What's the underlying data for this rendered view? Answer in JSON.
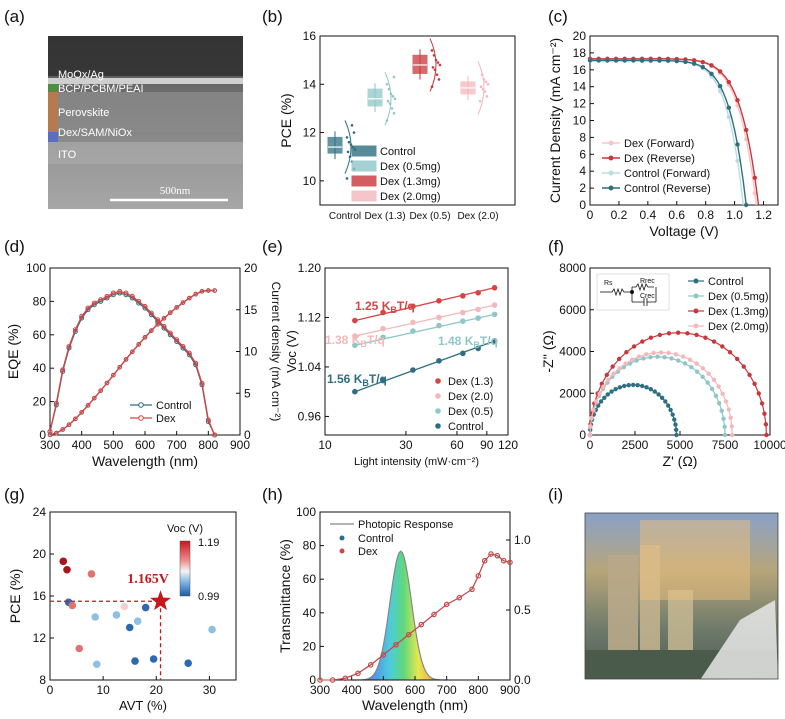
{
  "panel_labels": [
    "(a)",
    "(b)",
    "(c)",
    "(d)",
    "(e)",
    "(f)",
    "(g)",
    "(h)",
    "(i)"
  ],
  "colors": {
    "control": "#2e6f82",
    "dex": "#d64545",
    "dex13": "#c9373b",
    "dex05": "#8fc6c8",
    "dex20": "#f3b8bc",
    "control_light": "#b9dde0",
    "dex_light_pink": "#f6c7ca",
    "star": "#c8161d",
    "sem_bg": "#4d4d4d"
  },
  "panel_a": {
    "layers": [
      "MoOx/Ag",
      "BCP/PCBM/PEAI",
      "Perovskite",
      "Dex/SAM/NiOx",
      "ITO"
    ],
    "scalebar": "500nm"
  },
  "chart_data": [
    {
      "id": "b",
      "type": "scatter",
      "ylabel": "PCE (%)",
      "ylim": [
        9,
        16
      ],
      "yticks": [
        10,
        12,
        14,
        16
      ],
      "categories": [
        "Control",
        "Dex (1.3)",
        "Dex (0.5)",
        "Dex (2.0)"
      ],
      "box_means": [
        11.4,
        13.4,
        14.8,
        13.85
      ],
      "box_lo": [
        11.15,
        13.1,
        14.45,
        13.6
      ],
      "box_hi": [
        11.8,
        13.8,
        15.2,
        14.1
      ],
      "points": [
        [
          10.1,
          10.5,
          10.8,
          11.0,
          11.2,
          11.3,
          11.4,
          11.5,
          11.6,
          11.8,
          12.0,
          12.3
        ],
        [
          12.5,
          12.8,
          13.0,
          13.2,
          13.3,
          13.4,
          13.5,
          13.6,
          13.8,
          14.0,
          14.3
        ],
        [
          13.9,
          14.2,
          14.4,
          14.6,
          14.7,
          14.8,
          14.9,
          15.0,
          15.2,
          15.4
        ],
        [
          13.3,
          13.5,
          13.7,
          13.8,
          13.9,
          14.0,
          14.1,
          14.2,
          14.4
        ]
      ],
      "legend": [
        "Control",
        "Dex (0.5mg)",
        "Dex (1.3mg)",
        "Dex (2.0mg)"
      ]
    },
    {
      "id": "c",
      "type": "line",
      "xlabel": "Voltage (V)",
      "ylabel": "Current Density (mA cm⁻²)",
      "xlim": [
        0,
        1.3
      ],
      "ylim": [
        0,
        20
      ],
      "xticks": [
        "0",
        "0.2",
        "0.4",
        "0.6",
        "0.8",
        "1.0",
        "1.2"
      ],
      "yticks": [
        0,
        2,
        4,
        6,
        8,
        10,
        12,
        14,
        16,
        18,
        20
      ],
      "series": [
        {
          "name": "Dex (Forward)",
          "jsc": 17.3,
          "voc": 1.15
        },
        {
          "name": "Dex (Reverse)",
          "jsc": 17.3,
          "voc": 1.165
        },
        {
          "name": "Control (Forward)",
          "jsc": 17.1,
          "voc": 1.06
        },
        {
          "name": "Control (Reverse)",
          "jsc": 17.1,
          "voc": 1.08
        }
      ]
    },
    {
      "id": "d",
      "type": "line",
      "xlabel": "Wavelength (nm)",
      "ylabel": "EQE (%)",
      "ylabel_right": "Current density (mA cm⁻²)",
      "xlim": [
        300,
        900
      ],
      "ylim": [
        0,
        100
      ],
      "ylim_right": [
        0,
        20
      ],
      "xticks": [
        300,
        400,
        500,
        600,
        700,
        800,
        900
      ],
      "yticks": [
        0,
        20,
        40,
        60,
        80,
        100
      ],
      "yticks_right": [
        0,
        5,
        10,
        15,
        20
      ],
      "x": [
        300,
        320,
        340,
        360,
        380,
        400,
        420,
        440,
        460,
        480,
        500,
        520,
        540,
        560,
        580,
        600,
        620,
        640,
        660,
        680,
        700,
        720,
        740,
        760,
        780,
        800,
        820
      ],
      "series": [
        {
          "name": "Control",
          "eqe": [
            2,
            18,
            38,
            52,
            62,
            70,
            75,
            78,
            80,
            82,
            84,
            85,
            84,
            82,
            79,
            76,
            72,
            68,
            64,
            60,
            56,
            52,
            48,
            42,
            30,
            8,
            0
          ]
        },
        {
          "name": "Dex",
          "eqe": [
            2,
            19,
            39,
            53,
            63,
            71,
            76,
            79,
            81,
            83,
            85,
            86,
            85,
            83,
            80,
            77,
            73,
            69,
            65,
            61,
            57,
            53,
            49,
            43,
            31,
            9,
            0
          ]
        }
      ],
      "integrated_end": 17.3
    },
    {
      "id": "e",
      "type": "scatter",
      "xlabel": "Light intensity (mW·cm⁻²)",
      "ylabel": "Voc (V)",
      "xlim_log": [
        10,
        120
      ],
      "ylim": [
        0.93,
        1.2
      ],
      "xticks": [
        10,
        30,
        60,
        90,
        120
      ],
      "yticks": [
        0.96,
        1.04,
        1.12,
        1.2
      ],
      "x": [
        15,
        22,
        33,
        47,
        65,
        80,
        100
      ],
      "series": [
        {
          "name": "Dex (1.3)",
          "values": [
            1.115,
            1.128,
            1.138,
            1.147,
            1.155,
            1.16,
            1.168
          ]
        },
        {
          "name": "Dex (2.0)",
          "values": [
            1.09,
            1.102,
            1.112,
            1.12,
            1.128,
            1.133,
            1.14
          ]
        },
        {
          "name": "Dex (0.5)",
          "values": [
            1.075,
            1.088,
            1.098,
            1.107,
            1.114,
            1.119,
            1.125
          ]
        },
        {
          "name": "Control",
          "values": [
            1.0,
            1.018,
            1.035,
            1.05,
            1.062,
            1.07,
            1.082
          ]
        }
      ],
      "annotations": [
        {
          "text": "1.25 K",
          "sub": "B",
          "tail": "T/q",
          "series": "Dex (1.3)"
        },
        {
          "text": "1.38 K",
          "sub": "B",
          "tail": "T/q",
          "series": "Dex (2.0)"
        },
        {
          "text": "1.48 K",
          "sub": "B",
          "tail": "T/q",
          "series": "Dex (0.5)"
        },
        {
          "text": "1.56 K",
          "sub": "B",
          "tail": "T/q",
          "series": "Control"
        }
      ]
    },
    {
      "id": "f",
      "type": "scatter",
      "xlabel": "Z' (Ω)",
      "ylabel": "-Z'' (Ω)",
      "xlim": [
        0,
        10000
      ],
      "ylim": [
        0,
        8000
      ],
      "xticks": [
        0,
        2500,
        5000,
        7500,
        10000
      ],
      "yticks": [
        0,
        2000,
        4000,
        6000,
        8000
      ],
      "series": [
        {
          "name": "Control",
          "rrec": 4800
        },
        {
          "name": "Dex (0.5mg)",
          "rrec": 7500
        },
        {
          "name": "Dex (1.3mg)",
          "rrec": 9800
        },
        {
          "name": "Dex (2.0mg)",
          "rrec": 7900
        }
      ],
      "circuit_labels": [
        "Rs",
        "Rrec",
        "Crec"
      ]
    },
    {
      "id": "g",
      "type": "scatter",
      "xlabel": "AVT (%)",
      "ylabel": "PCE (%)",
      "xlim": [
        0,
        35
      ],
      "ylim": [
        8,
        24
      ],
      "xticks": [
        0,
        10,
        20,
        30
      ],
      "yticks": [
        8,
        12,
        16,
        20,
        24
      ],
      "colorbar": {
        "label": "Voc (V)",
        "max": "1.19",
        "min": "0.99"
      },
      "points": [
        {
          "x": 2.5,
          "y": 19.3,
          "voc": 1.17
        },
        {
          "x": 3.2,
          "y": 18.5,
          "voc": 1.19
        },
        {
          "x": 3.5,
          "y": 15.4,
          "voc": 1.0
        },
        {
          "x": 4.2,
          "y": 15.1,
          "voc": 1.12
        },
        {
          "x": 5.5,
          "y": 11.0,
          "voc": 1.11
        },
        {
          "x": 7.8,
          "y": 18.1,
          "voc": 1.11
        },
        {
          "x": 8.5,
          "y": 14.0,
          "voc": 1.02
        },
        {
          "x": 8.8,
          "y": 9.5,
          "voc": 1.02
        },
        {
          "x": 12.5,
          "y": 14.2,
          "voc": 1.02
        },
        {
          "x": 14.0,
          "y": 15.0,
          "voc": 1.09
        },
        {
          "x": 15.0,
          "y": 13.0,
          "voc": 1.01
        },
        {
          "x": 16.0,
          "y": 9.8,
          "voc": 1.0
        },
        {
          "x": 16.5,
          "y": 13.6,
          "voc": 1.02
        },
        {
          "x": 18.0,
          "y": 14.9,
          "voc": 0.99
        },
        {
          "x": 19.5,
          "y": 10.0,
          "voc": 1.0
        },
        {
          "x": 26.0,
          "y": 9.6,
          "voc": 1.01
        },
        {
          "x": 30.5,
          "y": 12.8,
          "voc": 1.04
        }
      ],
      "star": {
        "x": 20.8,
        "y": 15.5,
        "label": "1.165V"
      }
    },
    {
      "id": "h",
      "type": "line",
      "xlabel": "Wavelength (nm)",
      "ylabel": "Transmittance (%)",
      "xlim": [
        300,
        900
      ],
      "ylim": [
        0,
        100
      ],
      "ylim_right": [
        0,
        1.2
      ],
      "xticks": [
        300,
        400,
        500,
        600,
        700,
        800,
        900
      ],
      "yticks": [
        0,
        20,
        40,
        60,
        80,
        100
      ],
      "yticks_right": [
        "0.0",
        "0.5",
        "1.0"
      ],
      "x": [
        300,
        340,
        380,
        420,
        460,
        500,
        540,
        580,
        620,
        660,
        700,
        740,
        780,
        800,
        820,
        840,
        860,
        880,
        900
      ],
      "series": [
        {
          "name": "Control",
          "values": [
            0,
            0,
            1,
            4,
            9,
            15,
            21,
            27,
            33,
            39,
            45,
            49,
            54,
            62,
            71,
            75,
            74,
            71,
            70
          ]
        },
        {
          "name": "Dex",
          "values": [
            0,
            0,
            1,
            4,
            9,
            15,
            21,
            27,
            33,
            39,
            45,
            49,
            54,
            62,
            71,
            75,
            74,
            71,
            70
          ]
        }
      ],
      "photopic": {
        "name": "Photopic Response",
        "peak_nm": 555,
        "peak_value": 1.0
      }
    }
  ]
}
